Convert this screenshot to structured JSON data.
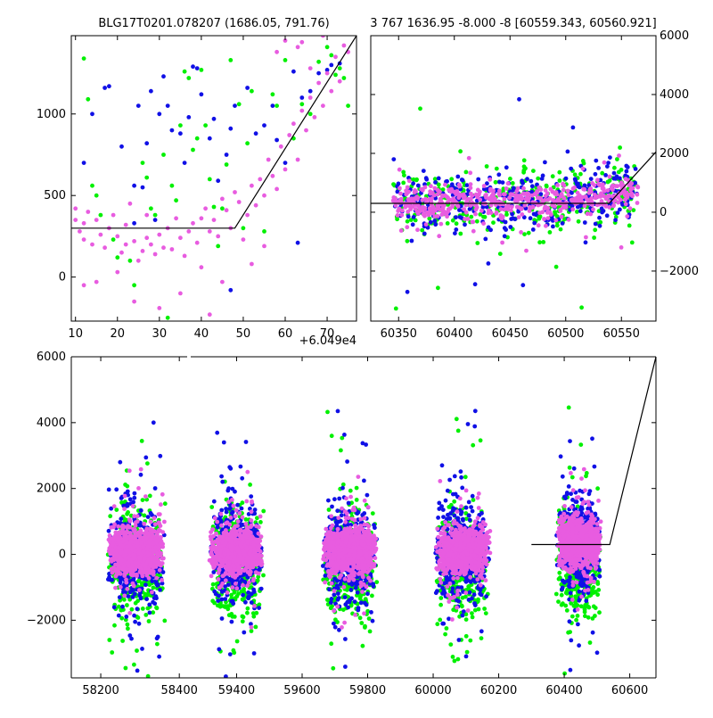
{
  "figure": {
    "title_left": "BLG17T0201.078207 (1686.05, 791.76)",
    "title_right": "3 767 1636.95 -8.000 -8 [60559.343, 60560.921]",
    "colors": {
      "blue": "#1010e6",
      "green": "#00f000",
      "pink": "#e85ce0",
      "line": "#000000"
    }
  },
  "chart_data": [
    {
      "type": "scatter",
      "panel": "top-left",
      "title": "BLG17T0201.078207 (1686.05, 791.76)",
      "x_offset_label": "+6.049e4",
      "xlim": [
        9,
        77
      ],
      "ylim": [
        -270,
        1480
      ],
      "xticks": [
        10,
        20,
        30,
        40,
        50,
        60,
        70
      ],
      "yticks": [
        0,
        500,
        1000
      ],
      "grid": false,
      "model_line": {
        "x": [
          9,
          48,
          77
        ],
        "y": [
          300,
          300,
          1480
        ]
      },
      "series": [
        {
          "color": "blue",
          "points": [
            [
              12,
              700
            ],
            [
              14,
              1000
            ],
            [
              17,
              1160
            ],
            [
              18,
              1170
            ],
            [
              21,
              800
            ],
            [
              24,
              330
            ],
            [
              24,
              560
            ],
            [
              25,
              1050
            ],
            [
              26,
              550
            ],
            [
              27,
              820
            ],
            [
              28,
              1140
            ],
            [
              29,
              350
            ],
            [
              30,
              1000
            ],
            [
              31,
              1230
            ],
            [
              32,
              1050
            ],
            [
              33,
              900
            ],
            [
              35,
              880
            ],
            [
              36,
              700
            ],
            [
              37,
              980
            ],
            [
              38,
              1290
            ],
            [
              39,
              1280
            ],
            [
              40,
              1120
            ],
            [
              42,
              850
            ],
            [
              43,
              970
            ],
            [
              44,
              590
            ],
            [
              46,
              750
            ],
            [
              47,
              910
            ],
            [
              48,
              1050
            ],
            [
              51,
              1160
            ],
            [
              53,
              880
            ],
            [
              55,
              930
            ],
            [
              57,
              1050
            ],
            [
              58,
              840
            ],
            [
              60,
              700
            ],
            [
              62,
              1260
            ],
            [
              64,
              1100
            ],
            [
              66,
              1140
            ],
            [
              68,
              1250
            ],
            [
              70,
              1270
            ],
            [
              71,
              1300
            ],
            [
              73,
              1310
            ],
            [
              63,
              210
            ],
            [
              47,
              -80
            ]
          ]
        },
        {
          "color": "green",
          "points": [
            [
              12,
              1340
            ],
            [
              13,
              1090
            ],
            [
              14,
              560
            ],
            [
              15,
              500
            ],
            [
              16,
              380
            ],
            [
              19,
              230
            ],
            [
              20,
              120
            ],
            [
              23,
              100
            ],
            [
              24,
              -50
            ],
            [
              26,
              700
            ],
            [
              27,
              610
            ],
            [
              28,
              420
            ],
            [
              29,
              380
            ],
            [
              31,
              750
            ],
            [
              32,
              -250
            ],
            [
              33,
              560
            ],
            [
              34,
              470
            ],
            [
              35,
              930
            ],
            [
              36,
              1260
            ],
            [
              37,
              1220
            ],
            [
              38,
              780
            ],
            [
              39,
              850
            ],
            [
              40,
              1270
            ],
            [
              41,
              930
            ],
            [
              42,
              600
            ],
            [
              43,
              430
            ],
            [
              44,
              190
            ],
            [
              45,
              420
            ],
            [
              46,
              690
            ],
            [
              47,
              1330
            ],
            [
              49,
              1060
            ],
            [
              50,
              300
            ],
            [
              51,
              820
            ],
            [
              52,
              1140
            ],
            [
              55,
              280
            ],
            [
              57,
              1120
            ],
            [
              58,
              1050
            ],
            [
              60,
              1330
            ],
            [
              62,
              850
            ],
            [
              64,
              1060
            ],
            [
              66,
              1000
            ],
            [
              68,
              1320
            ],
            [
              70,
              1410
            ],
            [
              71,
              1360
            ],
            [
              72,
              1240
            ],
            [
              73,
              1280
            ],
            [
              74,
              1220
            ],
            [
              75,
              1050
            ]
          ]
        },
        {
          "color": "pink",
          "points": [
            [
              10,
              350
            ],
            [
              10,
              420
            ],
            [
              11,
              280
            ],
            [
              12,
              330
            ],
            [
              12,
              230
            ],
            [
              13,
              400
            ],
            [
              14,
              200
            ],
            [
              15,
              350
            ],
            [
              16,
              260
            ],
            [
              17,
              180
            ],
            [
              18,
              300
            ],
            [
              19,
              380
            ],
            [
              20,
              250
            ],
            [
              21,
              150
            ],
            [
              22,
              200
            ],
            [
              22,
              320
            ],
            [
              23,
              450
            ],
            [
              24,
              220
            ],
            [
              25,
              100
            ],
            [
              26,
              160
            ],
            [
              27,
              240
            ],
            [
              27,
              380
            ],
            [
              28,
              200
            ],
            [
              29,
              140
            ],
            [
              30,
              260
            ],
            [
              31,
              180
            ],
            [
              32,
              300
            ],
            [
              33,
              170
            ],
            [
              34,
              360
            ],
            [
              35,
              240
            ],
            [
              36,
              130
            ],
            [
              37,
              280
            ],
            [
              38,
              330
            ],
            [
              39,
              210
            ],
            [
              40,
              360
            ],
            [
              41,
              420
            ],
            [
              42,
              280
            ],
            [
              43,
              350
            ],
            [
              44,
              250
            ],
            [
              45,
              480
            ],
            [
              46,
              410
            ],
            [
              47,
              300
            ],
            [
              48,
              520
            ],
            [
              49,
              460
            ],
            [
              50,
              230
            ],
            [
              51,
              380
            ],
            [
              52,
              560
            ],
            [
              53,
              440
            ],
            [
              54,
              600
            ],
            [
              55,
              500
            ],
            [
              56,
              720
            ],
            [
              57,
              620
            ],
            [
              58,
              540
            ],
            [
              59,
              800
            ],
            [
              60,
              660
            ],
            [
              61,
              870
            ],
            [
              62,
              940
            ],
            [
              63,
              720
            ],
            [
              64,
              1020
            ],
            [
              65,
              900
            ],
            [
              66,
              1100
            ],
            [
              67,
              980
            ],
            [
              68,
              1190
            ],
            [
              69,
              1050
            ],
            [
              70,
              1250
            ],
            [
              71,
              1140
            ],
            [
              72,
              1350
            ],
            [
              73,
              1200
            ],
            [
              74,
              1420
            ],
            [
              75,
              1380
            ],
            [
              58,
              1380
            ],
            [
              60,
              1450
            ],
            [
              64,
              1440
            ],
            [
              69,
              1480
            ],
            [
              24,
              -150
            ],
            [
              12,
              -50
            ],
            [
              15,
              -30
            ],
            [
              42,
              -230
            ],
            [
              30,
              -190
            ],
            [
              20,
              30
            ],
            [
              35,
              -100
            ],
            [
              40,
              60
            ],
            [
              45,
              -30
            ],
            [
              55,
              190
            ],
            [
              52,
              80
            ],
            [
              66,
              1280
            ],
            [
              63,
              1410
            ]
          ]
        }
      ]
    },
    {
      "type": "scatter",
      "panel": "top-right",
      "title": "3 767 1636.95 -8.000 -8 [60559.343, 60560.921]",
      "xlim": [
        60325,
        60581
      ],
      "ylim": [
        -3700,
        6000
      ],
      "xticks": [
        60350,
        60400,
        60450,
        60500,
        60550
      ],
      "yticks": [
        -2000,
        0,
        2000,
        4000,
        6000
      ],
      "grid": false,
      "model_line": {
        "x": [
          60325,
          60539,
          60581
        ],
        "y": [
          300,
          300,
          2050
        ]
      }
    },
    {
      "type": "scatter",
      "panel": "bottom",
      "xlim": [
        58125,
        60680
      ],
      "ylim": [
        -3750,
        6000
      ],
      "xticks": [
        58200,
        58400,
        59400,
        59600,
        59800,
        60000,
        60200,
        60400,
        60600
      ],
      "yticks": [
        -2000,
        0,
        2000,
        4000,
        6000
      ],
      "grid": false,
      "model_line": {
        "x": [
          60300,
          60539,
          60680
        ],
        "y": [
          300,
          300,
          6000
        ]
      },
      "season_centers": [
        58290,
        59400,
        59745,
        60090,
        60445
      ],
      "season_gaps": [
        [
          58420,
          59260
        ]
      ]
    }
  ]
}
